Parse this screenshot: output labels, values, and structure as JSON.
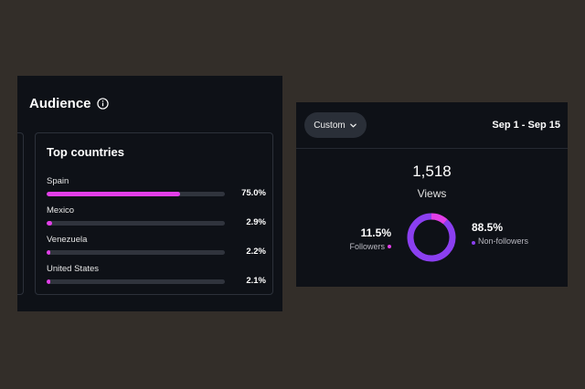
{
  "audience": {
    "title": "Audience",
    "card_title": "Top countries",
    "countries": [
      {
        "name": "Spain",
        "pct_label": "75.0%",
        "fraction": 0.75
      },
      {
        "name": "Mexico",
        "pct_label": "2.9%",
        "fraction": 0.029
      },
      {
        "name": "Venezuela",
        "pct_label": "2.2%",
        "fraction": 0.022
      },
      {
        "name": "United States",
        "pct_label": "2.1%",
        "fraction": 0.021
      }
    ]
  },
  "views_panel": {
    "custom_label": "Custom",
    "date_range": "Sep 1 - Sep 15",
    "count": "1,518",
    "label": "Views",
    "followers": {
      "pct_label": "11.5%",
      "label": "Followers",
      "fraction": 0.115
    },
    "non_followers": {
      "pct_label": "88.5%",
      "label": "Non-followers",
      "fraction": 0.885
    }
  },
  "colors": {
    "followers": "#e23fe8",
    "non_followers": "#8b3ff0",
    "bar_fill": "#e23fe8"
  }
}
